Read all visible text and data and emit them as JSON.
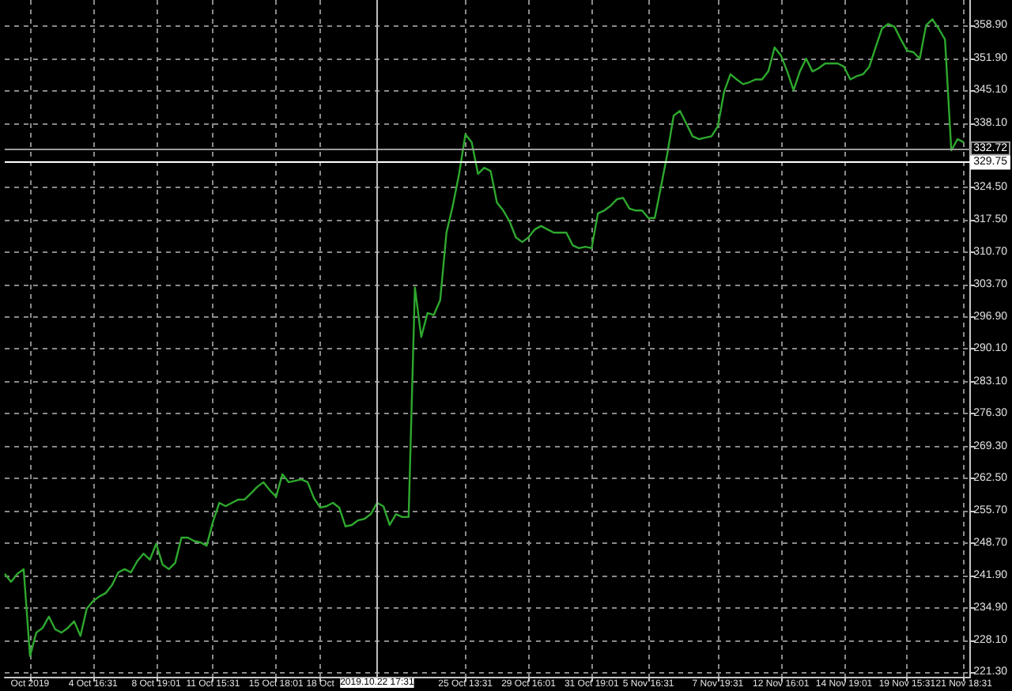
{
  "chart_data": {
    "type": "line",
    "categories": [
      null,
      null,
      null,
      null,
      "Oct 2019",
      null,
      null,
      null,
      null,
      null,
      null,
      null,
      null,
      null,
      "4 Oct 16:31",
      null,
      null,
      null,
      null,
      null,
      null,
      null,
      null,
      null,
      "8 Oct 19:01",
      null,
      null,
      null,
      null,
      null,
      null,
      null,
      null,
      "11 Oct 15:31",
      null,
      null,
      null,
      null,
      null,
      null,
      null,
      null,
      null,
      "15 Oct 18:01",
      null,
      null,
      null,
      null,
      null,
      null,
      "18 Oct",
      null,
      null,
      null,
      null,
      null,
      null,
      null,
      null,
      "2019.10.22 17:31",
      null,
      null,
      null,
      null,
      null,
      null,
      null,
      null,
      null,
      null,
      null,
      null,
      null,
      "25 Oct 13:31",
      null,
      null,
      null,
      null,
      null,
      null,
      null,
      null,
      null,
      "29 Oct 16:01",
      null,
      null,
      null,
      null,
      null,
      null,
      null,
      null,
      null,
      "31 Oct 19:01",
      null,
      null,
      null,
      null,
      null,
      null,
      null,
      null,
      "5 Nov 16:31",
      null,
      null,
      null,
      null,
      null,
      null,
      null,
      null,
      null,
      null,
      "7 Nov 19:31",
      null,
      null,
      null,
      null,
      null,
      null,
      null,
      null,
      null,
      "12 Nov 16:01",
      null,
      null,
      null,
      null,
      null,
      null,
      null,
      null,
      null,
      "14 Nov 19:01",
      null,
      null,
      null,
      null,
      null,
      null,
      null,
      null,
      null,
      "19 Nov 15:31",
      null,
      null,
      null,
      null,
      null,
      null,
      null,
      null,
      "21 Nov 18:31",
      null
    ],
    "series": [
      {
        "color": "#2ea82e",
        "values": [
          242.2,
          240.5,
          242.2,
          243.2,
          224.7,
          229.7,
          230.7,
          233.1,
          230.4,
          229.7,
          230.7,
          232.1,
          229.0,
          234.8,
          236.4,
          237.4,
          238.1,
          239.8,
          242.5,
          243.2,
          242.5,
          244.9,
          246.5,
          245.2,
          248.6,
          244.2,
          243.2,
          244.5,
          249.9,
          249.9,
          249.2,
          248.9,
          248.2,
          253.3,
          257.3,
          256.6,
          257.3,
          258.0,
          258.0,
          259.3,
          260.7,
          261.7,
          260.0,
          258.6,
          263.4,
          261.7,
          262.0,
          262.3,
          261.7,
          258.3,
          256.3,
          256.6,
          257.3,
          256.3,
          252.3,
          252.6,
          253.6,
          253.9,
          254.9,
          257.3,
          256.6,
          252.6,
          254.9,
          254.3,
          254.3,
          303.1,
          292.6,
          297.7,
          297.3,
          300.4,
          314.8,
          320.5,
          327.3,
          335.7,
          334.0,
          327.3,
          328.6,
          327.9,
          321.2,
          319.5,
          317.2,
          313.8,
          312.8,
          313.8,
          315.5,
          316.2,
          315.5,
          314.8,
          314.8,
          314.8,
          312.1,
          311.5,
          311.8,
          311.5,
          318.9,
          319.5,
          320.5,
          321.9,
          322.2,
          319.9,
          319.5,
          319.5,
          317.9,
          317.9,
          324.6,
          331.6,
          339.7,
          340.7,
          338.0,
          335.3,
          334.7,
          335.0,
          335.3,
          337.4,
          344.8,
          348.5,
          347.4,
          346.4,
          346.8,
          347.4,
          347.4,
          349.1,
          354.2,
          352.5,
          349.1,
          345.1,
          349.1,
          351.8,
          349.1,
          349.8,
          350.8,
          350.8,
          350.8,
          350.1,
          347.4,
          348.1,
          348.5,
          350.1,
          354.2,
          358.2,
          359.2,
          358.6,
          355.9,
          353.5,
          353.2,
          351.8,
          358.9,
          360.2,
          358.2,
          355.9,
          332.3,
          334.7,
          334.0,
          null
        ]
      }
    ],
    "ylim": [
      220.3,
      364.3
    ],
    "yticks": [
      {
        "value": 221.3,
        "label": "221.30"
      },
      {
        "value": 228.1,
        "label": "228.10"
      },
      {
        "value": 234.9,
        "label": "234.90"
      },
      {
        "value": 241.9,
        "label": "241.90"
      },
      {
        "value": 248.7,
        "label": "248.70"
      },
      {
        "value": 255.7,
        "label": "255.70"
      },
      {
        "value": 262.5,
        "label": "262.50"
      },
      {
        "value": 269.3,
        "label": "269.30"
      },
      {
        "value": 276.3,
        "label": "276.30"
      },
      {
        "value": 283.1,
        "label": "283.10"
      },
      {
        "value": 290.1,
        "label": "290.10"
      },
      {
        "value": 296.9,
        "label": "296.90"
      },
      {
        "value": 303.7,
        "label": "303.70"
      },
      {
        "value": 310.7,
        "label": "310.70"
      },
      {
        "value": 317.5,
        "label": "317.50"
      },
      {
        "value": 324.5,
        "label": "324.50"
      },
      {
        "value": 338.1,
        "label": "338.10"
      },
      {
        "value": 345.1,
        "label": "345.10"
      },
      {
        "value": 351.9,
        "label": "351.90"
      },
      {
        "value": 358.9,
        "label": "358.90"
      }
    ],
    "grid": true,
    "ref_lines": [
      {
        "axis": "y",
        "value": 332.72,
        "label": "332.72",
        "color": "#9a9a9a"
      },
      {
        "axis": "y",
        "value": 329.75,
        "label": "329.75",
        "color": "#ffffff"
      },
      {
        "axis": "x",
        "value": "2019.10.22 17:31",
        "color": "#bdbdbd"
      }
    ]
  }
}
